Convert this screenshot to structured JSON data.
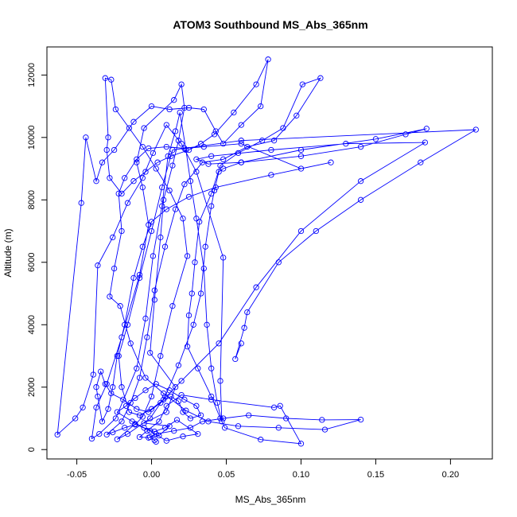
{
  "chart_data": {
    "type": "line",
    "title": "ATOM3 Southbound MS_Abs_365nm",
    "xlabel": "MS_Abs_365nm",
    "ylabel": "Altitude (m)",
    "xlim": [
      -0.07,
      0.228
    ],
    "ylim": [
      -300,
      12900
    ],
    "xticks": [
      -0.05,
      0.0,
      0.05,
      0.1,
      0.15,
      0.2
    ],
    "xtick_labels": [
      "-0.05",
      "0.00",
      "0.05",
      "0.10",
      "0.15",
      "0.20"
    ],
    "yticks": [
      0,
      2000,
      4000,
      6000,
      8000,
      10000,
      12000
    ],
    "ytick_labels": [
      "0",
      "2000",
      "4000",
      "6000",
      "8000",
      "10000",
      "12000"
    ],
    "grid": false,
    "line_color": "#0000ff",
    "marker": "open-circle",
    "series": [
      {
        "points": [
          [
            0.003,
            250
          ],
          [
            0.002,
            300
          ],
          [
            -0.001,
            400
          ],
          [
            0.005,
            450
          ],
          [
            0.012,
            750
          ],
          [
            -0.005,
            850
          ],
          [
            0.01,
            1200
          ],
          [
            0.016,
            2000
          ],
          [
            -0.001,
            3100
          ],
          [
            0.002,
            4800
          ],
          [
            0.006,
            6800
          ],
          [
            0.008,
            8000
          ],
          [
            0.014,
            9100
          ],
          [
            0.018,
            9900
          ],
          [
            0.022,
            10950
          ],
          [
            0.02,
            11700
          ],
          [
            0.015,
            11200
          ],
          [
            -0.005,
            10300
          ],
          [
            -0.01,
            9200
          ],
          [
            -0.006,
            8400
          ],
          [
            -0.002,
            7200
          ],
          [
            -0.008,
            5600
          ],
          [
            -0.02,
            3600
          ],
          [
            -0.03,
            2100
          ],
          [
            -0.037,
            1350
          ],
          [
            -0.04,
            350
          ],
          [
            -0.035,
            500
          ],
          [
            -0.024,
            1000
          ],
          [
            -0.01,
            2600
          ],
          [
            -0.004,
            4200
          ],
          [
            0.001,
            6200
          ],
          [
            0.007,
            7800
          ],
          [
            0.011,
            9400
          ],
          [
            0.016,
            10200
          ],
          [
            0.019,
            10800
          ],
          [
            0.023,
            9600
          ],
          [
            0.026,
            8600
          ],
          [
            0.03,
            7400
          ],
          [
            0.035,
            5800
          ],
          [
            0.037,
            4000
          ],
          [
            0.04,
            2600
          ],
          [
            0.044,
            1500
          ],
          [
            0.047,
            900
          ],
          [
            0.046,
            2200
          ],
          [
            0.048,
            6150
          ],
          [
            0.03,
            8900
          ],
          [
            0.02,
            9800
          ],
          [
            0.01,
            10400
          ],
          [
            0.001,
            9500
          ],
          [
            -0.006,
            8700
          ],
          [
            -0.016,
            7900
          ],
          [
            -0.026,
            6800
          ],
          [
            -0.036,
            5900
          ],
          [
            -0.039,
            2400
          ],
          [
            -0.046,
            1350
          ],
          [
            -0.051,
            1000
          ],
          [
            -0.063,
            480
          ],
          [
            -0.047,
            7900
          ],
          [
            -0.044,
            10000
          ],
          [
            -0.037,
            8600
          ],
          [
            -0.033,
            9200
          ],
          [
            -0.025,
            9600
          ],
          [
            -0.012,
            10500
          ],
          [
            0.0,
            11000
          ],
          [
            0.012,
            10900
          ],
          [
            0.025,
            10950
          ],
          [
            0.035,
            10900
          ],
          [
            0.043,
            10200
          ],
          [
            0.048,
            9800
          ],
          [
            0.06,
            10400
          ],
          [
            0.073,
            11000
          ],
          [
            0.078,
            12500
          ],
          [
            0.07,
            11700
          ],
          [
            0.055,
            10800
          ],
          [
            0.042,
            10100
          ],
          [
            0.033,
            9800
          ],
          [
            0.025,
            9600
          ],
          [
            0.013,
            9400
          ],
          [
            0.004,
            9200
          ],
          [
            -0.004,
            8900
          ],
          [
            -0.012,
            8600
          ],
          [
            -0.02,
            8200
          ],
          [
            -0.028,
            8700
          ],
          [
            -0.03,
            9600
          ],
          [
            -0.029,
            10000
          ],
          [
            -0.031,
            11900
          ],
          [
            -0.027,
            11850
          ],
          [
            -0.024,
            10900
          ],
          [
            -0.015,
            10300
          ],
          [
            -0.006,
            9700
          ],
          [
            0.003,
            9000
          ],
          [
            0.012,
            8300
          ],
          [
            0.021,
            7400
          ],
          [
            0.024,
            6200
          ],
          [
            0.014,
            4600
          ],
          [
            0.006,
            3000
          ],
          [
            0.0,
            1700
          ],
          [
            -0.006,
            1050
          ],
          [
            -0.011,
            800
          ],
          [
            -0.018,
            700
          ],
          [
            -0.026,
            550
          ],
          [
            -0.03,
            480
          ],
          [
            -0.02,
            900
          ],
          [
            -0.014,
            1500
          ],
          [
            -0.008,
            2300
          ],
          [
            -0.003,
            3600
          ],
          [
            0.002,
            5100
          ],
          [
            0.009,
            6500
          ],
          [
            0.016,
            7700
          ],
          [
            0.022,
            8500
          ],
          [
            0.034,
            9200
          ],
          [
            0.048,
            9300
          ],
          [
            0.064,
            9700
          ],
          [
            0.082,
            9900
          ],
          [
            0.097,
            10700
          ],
          [
            0.113,
            11900
          ],
          [
            0.101,
            11700
          ],
          [
            0.088,
            10300
          ],
          [
            0.074,
            9900
          ],
          [
            0.058,
            9500
          ],
          [
            0.046,
            9100
          ],
          [
            0.04,
            8200
          ],
          [
            0.032,
            7300
          ],
          [
            0.029,
            6000
          ],
          [
            0.027,
            5000
          ],
          [
            0.025,
            4300
          ],
          [
            0.024,
            3300
          ],
          [
            0.031,
            2600
          ],
          [
            0.04,
            1700
          ],
          [
            0.046,
            1000
          ],
          [
            0.049,
            700
          ],
          [
            0.073,
            320
          ],
          [
            0.1,
            190
          ],
          [
            0.086,
            1400
          ],
          [
            0.082,
            1350
          ],
          [
            0.04,
            1600
          ],
          [
            0.02,
            1750
          ],
          [
            0.01,
            1400
          ],
          [
            0.005,
            900
          ],
          [
            -0.003,
            600
          ],
          [
            -0.008,
            400
          ],
          [
            -0.002,
            380
          ],
          [
            0.003,
            500
          ],
          [
            0.015,
            600
          ],
          [
            0.026,
            700
          ],
          [
            0.034,
            900
          ],
          [
            0.048,
            1000
          ],
          [
            0.065,
            1100
          ],
          [
            0.09,
            1000
          ],
          [
            0.114,
            950
          ],
          [
            0.14,
            960
          ],
          [
            0.116,
            640
          ],
          [
            0.085,
            700
          ],
          [
            0.058,
            750
          ],
          [
            0.038,
            900
          ],
          [
            0.023,
            1250
          ],
          [
            0.008,
            1800
          ],
          [
            -0.004,
            2300
          ],
          [
            -0.014,
            3400
          ],
          [
            -0.021,
            4600
          ],
          [
            -0.028,
            4900
          ],
          [
            -0.025,
            5800
          ],
          [
            -0.02,
            7000
          ],
          [
            -0.022,
            8200
          ],
          [
            -0.018,
            8700
          ],
          [
            -0.01,
            9300
          ],
          [
            -0.002,
            9650
          ],
          [
            0.01,
            9700
          ],
          [
            0.022,
            9650
          ],
          [
            0.035,
            9700
          ],
          [
            0.06,
            9800
          ],
          [
            0.1,
            9000
          ],
          [
            0.12,
            9200
          ],
          [
            0.08,
            8800
          ],
          [
            0.043,
            8400
          ],
          [
            0.025,
            8100
          ],
          [
            0.01,
            7700
          ],
          [
            0.0,
            7300
          ],
          [
            -0.006,
            6500
          ],
          [
            -0.012,
            5500
          ],
          [
            -0.018,
            4000
          ],
          [
            -0.023,
            3000
          ],
          [
            -0.026,
            2000
          ],
          [
            -0.029,
            1300
          ],
          [
            -0.033,
            900
          ],
          [
            -0.036,
            1700
          ],
          [
            -0.037,
            2000
          ],
          [
            -0.034,
            2500
          ],
          [
            -0.031,
            2100
          ],
          [
            -0.027,
            1800
          ],
          [
            -0.019,
            1600
          ],
          [
            -0.01,
            1300
          ],
          [
            -0.002,
            1200
          ],
          [
            0.006,
            1500
          ],
          [
            0.013,
            1700
          ],
          [
            0.018,
            1550
          ],
          [
            0.021,
            1200
          ],
          [
            0.026,
            1000
          ],
          [
            0.033,
            1100
          ],
          [
            0.03,
            1400
          ],
          [
            0.022,
            1600
          ],
          [
            0.012,
            1900
          ],
          [
            0.003,
            2100
          ],
          [
            -0.004,
            1900
          ],
          [
            -0.011,
            1650
          ],
          [
            -0.017,
            1400
          ],
          [
            -0.023,
            1200
          ],
          [
            -0.013,
            900
          ],
          [
            -0.005,
            700
          ],
          [
            0.002,
            580
          ],
          [
            0.009,
            700
          ],
          [
            0.017,
            950
          ],
          [
            0.031,
            500
          ],
          [
            0.021,
            420
          ],
          [
            0.01,
            280
          ],
          [
            -0.001,
            600
          ],
          [
            -0.011,
            820
          ],
          [
            -0.023,
            330
          ],
          [
            -0.016,
            500
          ],
          [
            -0.001,
            1000
          ],
          [
            0.009,
            1700
          ],
          [
            0.018,
            2700
          ],
          [
            0.028,
            4000
          ],
          [
            0.033,
            5000
          ],
          [
            0.036,
            6500
          ],
          [
            0.04,
            7800
          ],
          [
            0.042,
            8300
          ],
          [
            0.045,
            8900
          ],
          [
            0.048,
            9000
          ],
          [
            0.06,
            9200
          ],
          [
            0.1,
            9600
          ],
          [
            0.15,
            9950
          ],
          [
            0.184,
            10280
          ],
          [
            0.17,
            10100
          ],
          [
            0.14,
            9700
          ],
          [
            0.1,
            9400
          ],
          [
            0.06,
            9200
          ],
          [
            0.038,
            9150
          ],
          [
            0.03,
            9300
          ],
          [
            0.04,
            9400
          ],
          [
            0.08,
            9600
          ],
          [
            0.13,
            9800
          ],
          [
            0.183,
            9840
          ],
          [
            0.14,
            8600
          ],
          [
            0.1,
            7000
          ],
          [
            0.07,
            5200
          ],
          [
            0.045,
            3400
          ],
          [
            0.02,
            2200
          ],
          [
            0.008,
            1600
          ],
          [
            0.0,
            1300
          ],
          [
            -0.008,
            1100
          ],
          [
            -0.015,
            1200
          ],
          [
            -0.02,
            2000
          ],
          [
            -0.022,
            3000
          ],
          [
            -0.016,
            4000
          ],
          [
            -0.008,
            5500
          ],
          [
            0.0,
            7000
          ],
          [
            0.007,
            8400
          ],
          [
            0.014,
            9600
          ],
          [
            0.06,
            9900
          ],
          [
            0.217,
            10250
          ],
          [
            0.18,
            9200
          ],
          [
            0.14,
            8000
          ],
          [
            0.11,
            7000
          ],
          [
            0.085,
            6000
          ],
          [
            0.064,
            4400
          ],
          [
            0.062,
            3900
          ],
          [
            0.056,
            2900
          ],
          [
            0.06,
            3400
          ]
        ]
      }
    ]
  }
}
